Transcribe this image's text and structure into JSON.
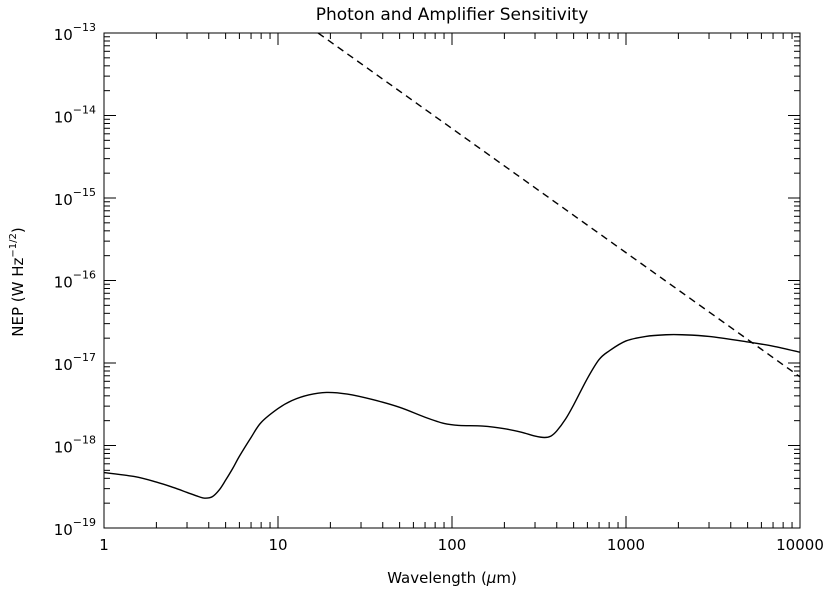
{
  "chart_data": {
    "type": "line",
    "title": "Photon and Amplifier Sensitivity",
    "xlabel": "Wavelength (μm)",
    "ylabel": "NEP (W Hz⁻¹ᐟ²)",
    "ylabel_parts": {
      "main": "NEP (W Hz",
      "sup": "−1/2",
      "close": ")"
    },
    "xlabel_parts": {
      "pre": "Wavelength (",
      "mu": "μ",
      "post": "m)"
    },
    "x_scale": "log",
    "y_scale": "log",
    "xlim": [
      1,
      10000
    ],
    "ylim": [
      1e-19,
      1e-13
    ],
    "grid": false,
    "x_ticks": [
      {
        "value": 1,
        "label": "1"
      },
      {
        "value": 10,
        "label": "10"
      },
      {
        "value": 100,
        "label": "100"
      },
      {
        "value": 1000,
        "label": "1000"
      },
      {
        "value": 10000,
        "label": "10000"
      }
    ],
    "y_ticks": [
      {
        "value": 1e-13,
        "base": "10",
        "exp": "−13"
      },
      {
        "value": 1e-14,
        "base": "10",
        "exp": "−14"
      },
      {
        "value": 1e-15,
        "base": "10",
        "exp": "−15"
      },
      {
        "value": 1e-16,
        "base": "10",
        "exp": "−16"
      },
      {
        "value": 1e-17,
        "base": "10",
        "exp": "−17"
      },
      {
        "value": 1e-18,
        "base": "10",
        "exp": "−18"
      },
      {
        "value": 1e-19,
        "base": "10",
        "exp": "−19"
      }
    ],
    "series": [
      {
        "style": "solid",
        "color": "#000000",
        "x": [
          1,
          1.5,
          2,
          2.5,
          3,
          3.5,
          3.8,
          4.2,
          4.6,
          5,
          5.5,
          6,
          7,
          8,
          10,
          12,
          15,
          19,
          25,
          35,
          50,
          70,
          90,
          110,
          150,
          200,
          250,
          300,
          340,
          370,
          400,
          450,
          500,
          600,
          700,
          800,
          1000,
          1300,
          1700,
          2100,
          3000,
          5000,
          7000,
          10000
        ],
        "y": [
          4.7e-19,
          4.2e-19,
          3.6e-19,
          3.1e-19,
          2.7e-19,
          2.4e-19,
          2.3e-19,
          2.4e-19,
          2.9e-19,
          3.8e-19,
          5.3e-19,
          7.4e-19,
          1.25e-18,
          1.9e-18,
          2.8e-18,
          3.5e-18,
          4.1e-18,
          4.4e-18,
          4.2e-18,
          3.6e-18,
          2.9e-18,
          2.2e-18,
          1.85e-18,
          1.75e-18,
          1.72e-18,
          1.6e-18,
          1.45e-18,
          1.3e-18,
          1.25e-18,
          1.3e-18,
          1.5e-18,
          2.1e-18,
          3.1e-18,
          6.5e-18,
          1.1e-17,
          1.4e-17,
          1.85e-17,
          2.1e-17,
          2.2e-17,
          2.2e-17,
          2.1e-17,
          1.8e-17,
          1.6e-17,
          1.35e-17
        ]
      },
      {
        "style": "dashed",
        "color": "#000000",
        "x": [
          17,
          10000
        ],
        "y": [
          1e-13,
          6.8e-18
        ]
      }
    ]
  }
}
